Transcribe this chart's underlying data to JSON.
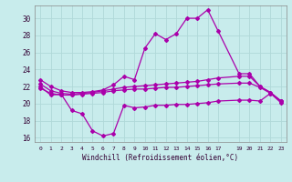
{
  "xlabel": "Windchill (Refroidissement éolien,°C)",
  "bg_color": "#c8ecec",
  "line_color": "#aa00aa",
  "grid_color": "#aadddd",
  "x_vals": [
    0,
    1,
    2,
    3,
    4,
    5,
    6,
    7,
    8,
    9,
    10,
    11,
    12,
    13,
    14,
    15,
    16,
    17,
    19,
    20,
    21,
    22,
    23
  ],
  "xlim": [
    -0.5,
    23.5
  ],
  "ylim": [
    15.5,
    31.5
  ],
  "y_ticks": [
    16,
    18,
    20,
    22,
    24,
    26,
    28,
    30
  ],
  "line1_y": [
    22.8,
    22.0,
    21.5,
    21.3,
    21.3,
    21.4,
    21.6,
    22.2,
    23.2,
    22.8,
    26.5,
    28.2,
    27.5,
    28.2,
    30.0,
    30.0,
    31.0,
    28.5,
    23.5,
    23.5,
    22.0,
    21.3,
    20.3
  ],
  "line2_y": [
    22.3,
    21.5,
    21.2,
    21.1,
    21.2,
    21.3,
    21.5,
    21.7,
    21.9,
    22.0,
    22.1,
    22.2,
    22.3,
    22.4,
    22.5,
    22.6,
    22.8,
    23.0,
    23.2,
    23.2,
    22.0,
    21.3,
    20.3
  ],
  "line3_y": [
    21.8,
    21.2,
    21.0,
    21.0,
    21.1,
    21.2,
    21.3,
    21.5,
    21.6,
    21.7,
    21.7,
    21.8,
    21.9,
    21.9,
    22.0,
    22.1,
    22.2,
    22.3,
    22.4,
    22.4,
    21.9,
    21.2,
    20.1
  ],
  "line4_y": [
    22.0,
    21.0,
    21.1,
    19.2,
    18.8,
    16.8,
    16.2,
    16.5,
    19.8,
    19.5,
    19.6,
    19.8,
    19.8,
    19.9,
    19.9,
    20.0,
    20.1,
    20.3,
    20.4,
    20.4,
    20.3,
    21.2,
    20.3
  ]
}
